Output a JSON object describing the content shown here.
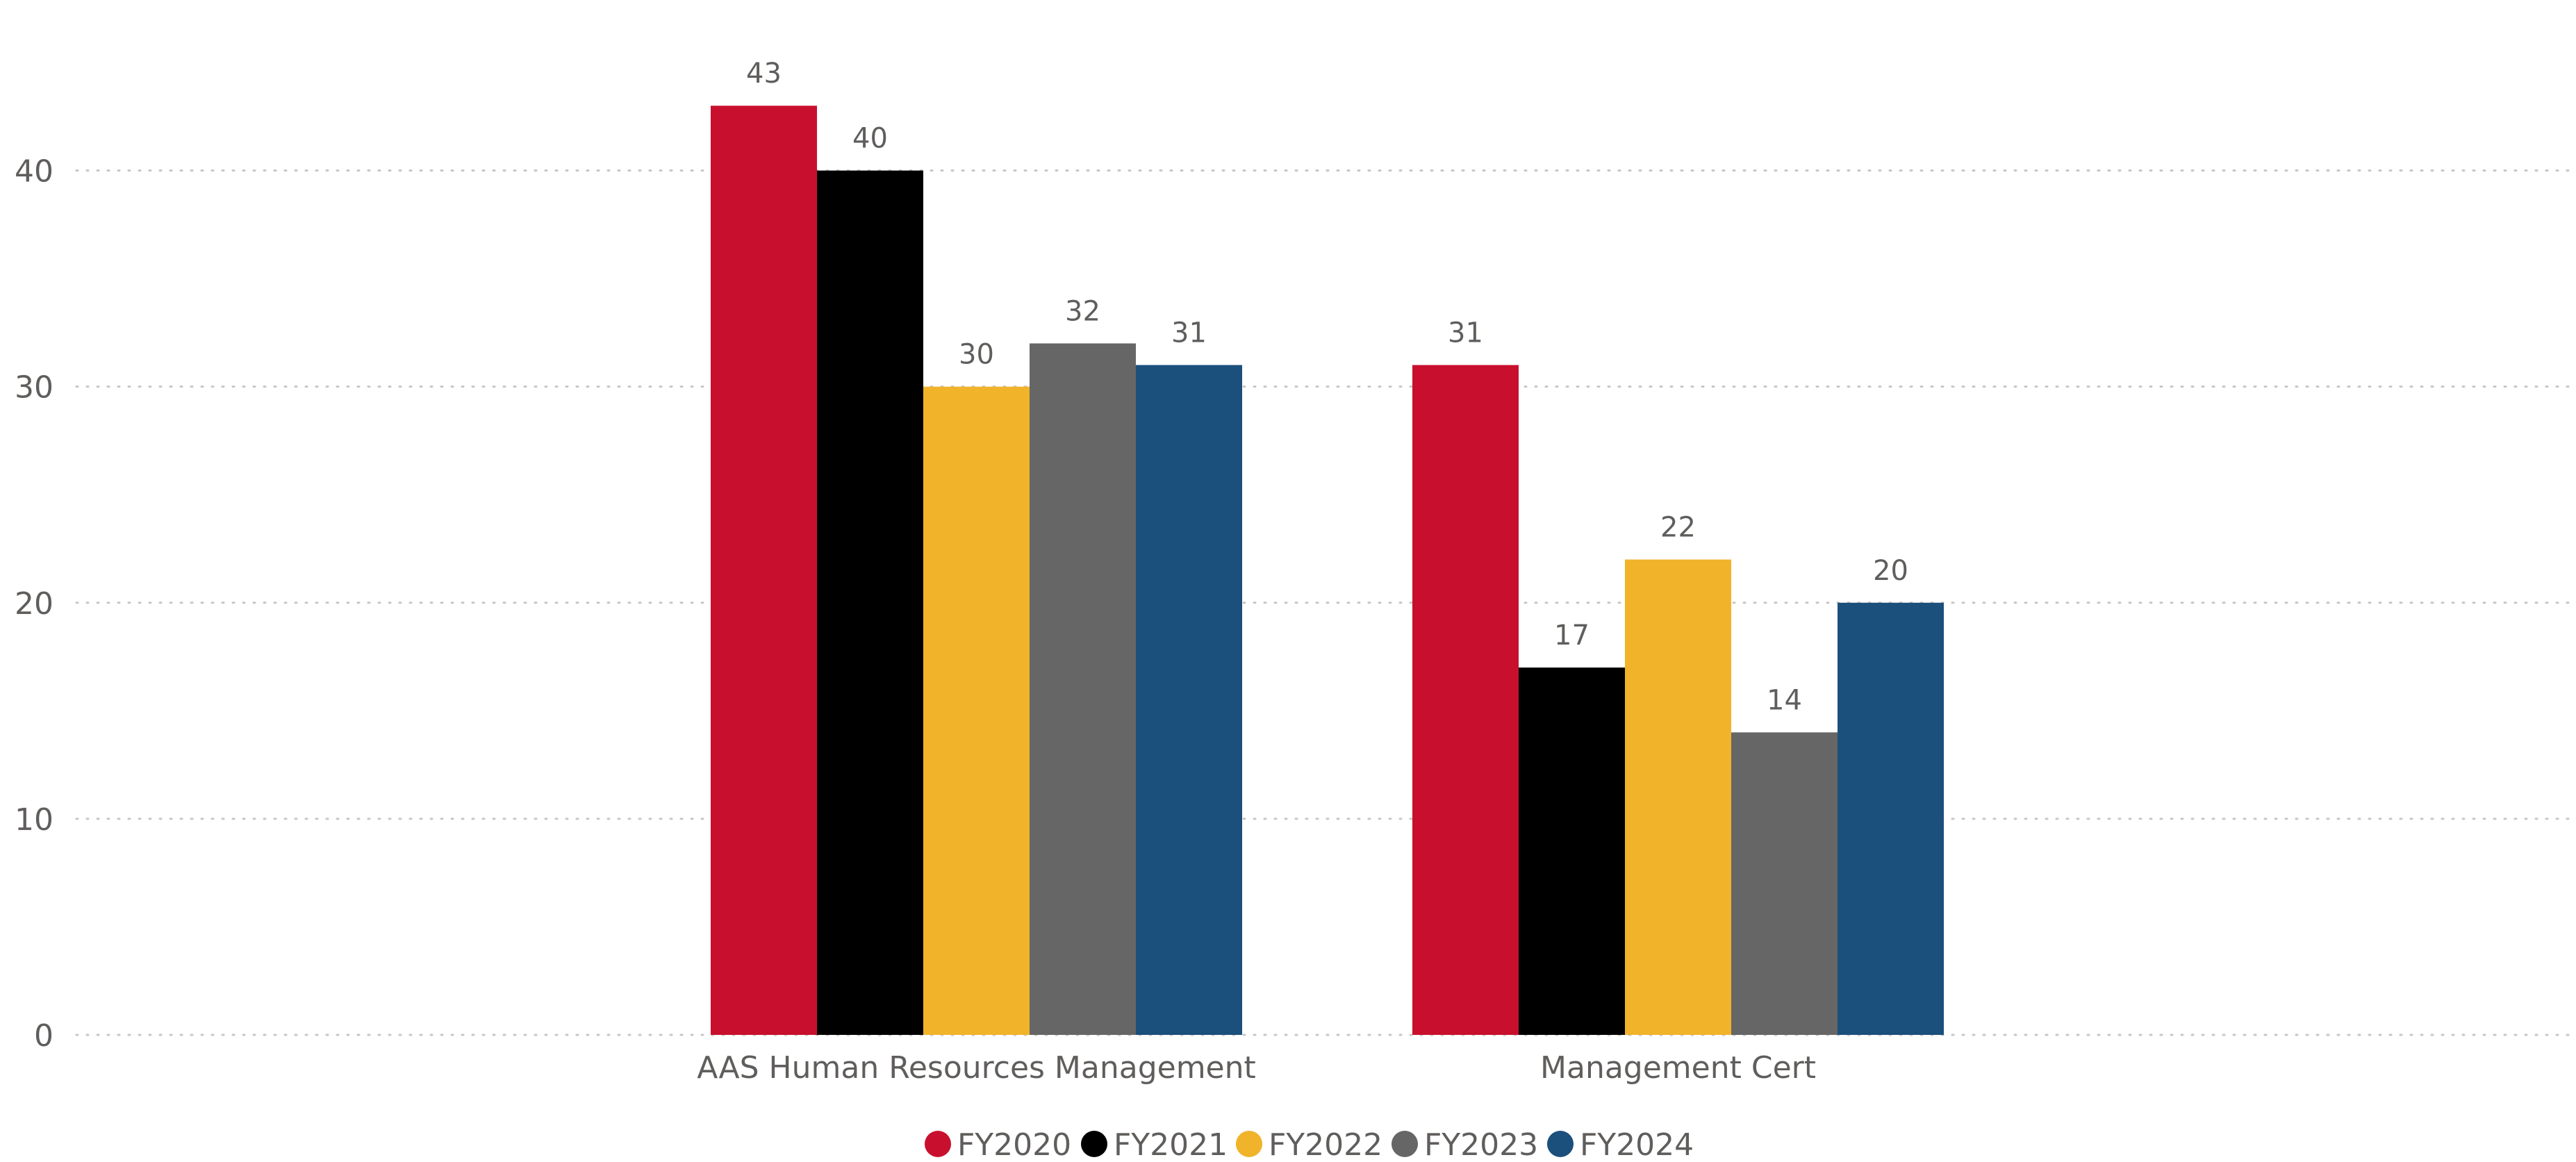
{
  "chart_data": {
    "type": "bar",
    "title": "",
    "xlabel": "",
    "ylabel": "",
    "categories": [
      "AAS Human Resources Management",
      "Management Cert"
    ],
    "series": [
      {
        "name": "FY2020",
        "color": "#C8102E",
        "values": [
          43,
          31
        ]
      },
      {
        "name": "FY2021",
        "color": "#000000",
        "values": [
          40,
          17
        ]
      },
      {
        "name": "FY2022",
        "color": "#F0B32A",
        "values": [
          30,
          22
        ]
      },
      {
        "name": "FY2023",
        "color": "#666666",
        "values": [
          32,
          14
        ]
      },
      {
        "name": "FY2024",
        "color": "#1B4F7C",
        "values": [
          31,
          20
        ]
      }
    ],
    "ylim": [
      0,
      45
    ],
    "yticks": [
      0,
      10,
      20,
      30,
      40
    ],
    "grid": true,
    "grid_style": "dotted",
    "data_labels": true,
    "legend_position": "bottom",
    "colors": {
      "axis_text": "#605E5C",
      "grid": "#C8C6C4"
    }
  }
}
